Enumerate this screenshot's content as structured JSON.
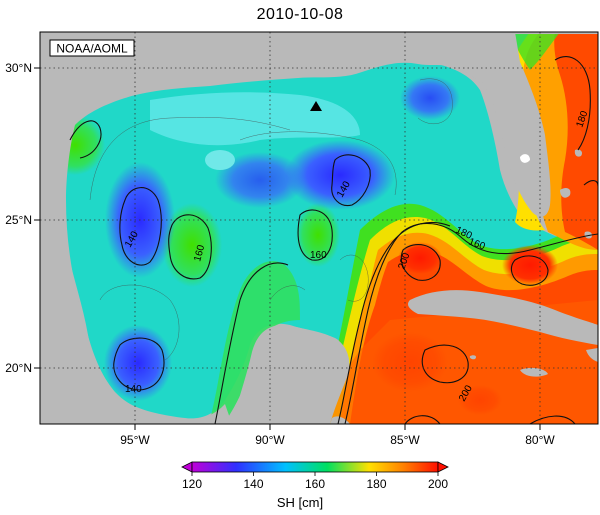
{
  "title": "2010-10-08",
  "credit": "NOAA/AOML",
  "map": {
    "lat_ticks": [
      "30°N",
      "25°N",
      "20°N"
    ],
    "lon_ticks": [
      "95°W",
      "90°W",
      "85°W",
      "80°W"
    ],
    "marker": "triangle-marker",
    "colors": {
      "land": "#b9b9b9",
      "grid": "#333333"
    }
  },
  "contour_labels": [
    "140",
    "140",
    "160",
    "160",
    "160",
    "180",
    "200",
    "200",
    "180",
    "140"
  ],
  "colorbar": {
    "label": "SH [cm]",
    "ticks": [
      "120",
      "140",
      "160",
      "180",
      "200"
    ],
    "min": 120,
    "max": 200,
    "colors": [
      "#b000c8",
      "#3030ff",
      "#00c8ff",
      "#00e060",
      "#ffe000",
      "#ff8000",
      "#ff1a00"
    ]
  }
}
